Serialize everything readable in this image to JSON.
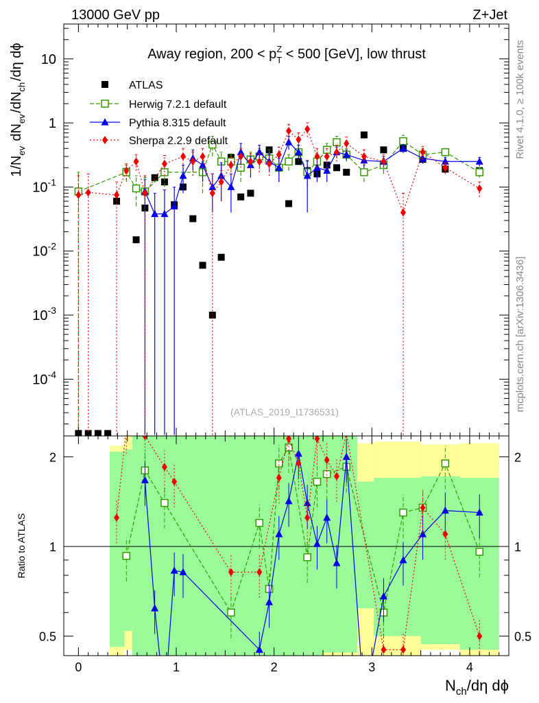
{
  "header": {
    "left": "13000 GeV pp",
    "right": "Z+Jet"
  },
  "side": {
    "rivet": "Rivet 4.1.0, ≥ 100k events",
    "mcplots": "mcplots.cern.ch [arXiv:1306.3436]"
  },
  "chart_data": {
    "type": "scatter",
    "title": "Away region, 200 < p_T^Z < 500 [GeV], low thrust",
    "watermark": "(ATLAS_2019_I1736531)",
    "xlabel": "N_ch/dη dϕ",
    "ylabel": "1/N_ev dN_ev/dN_ch/dη dϕ",
    "ratio_ylabel": "Ratio to ATLAS",
    "xlim": [
      -0.15,
      4.4
    ],
    "ylim": [
      1.3e-05,
      35
    ],
    "ratio_ylim": [
      0.43,
      2.35
    ],
    "xticks": [
      0,
      1,
      2,
      3,
      4
    ],
    "yticks": [
      {
        "value": 10,
        "label": "10"
      },
      {
        "value": 1,
        "label": "1"
      },
      {
        "value": 0.1,
        "label": "10^-1"
      },
      {
        "value": 0.01,
        "label": "10^-2"
      },
      {
        "value": 0.001,
        "label": "10^-3"
      },
      {
        "value": 0.0001,
        "label": "10^-4"
      }
    ],
    "ratio_yticks": [
      {
        "value": 0.5,
        "label": "0.5"
      },
      {
        "value": 1,
        "label": "1"
      },
      {
        "value": 2,
        "label": "2"
      }
    ],
    "series": [
      {
        "name": "ATLAS",
        "color": "#000000",
        "marker": "square",
        "points": [
          [
            0.0,
            1.42e-05
          ],
          [
            0.1,
            1.42e-05
          ],
          [
            0.2,
            1.42e-05
          ],
          [
            0.3,
            1.42e-05
          ],
          [
            0.39,
            0.06
          ],
          [
            0.49,
            0.175
          ],
          [
            0.59,
            0.015
          ],
          [
            0.68,
            0.047
          ],
          [
            0.78,
            0.14
          ],
          [
            0.88,
            0.12
          ],
          [
            0.98,
            0.053
          ],
          [
            1.07,
            0.1
          ],
          [
            1.17,
            0.032
          ],
          [
            1.27,
            0.006
          ],
          [
            1.37,
            0.001
          ],
          [
            1.46,
            0.008
          ],
          [
            1.56,
            0.29
          ],
          [
            1.66,
            0.07
          ],
          [
            1.76,
            0.08
          ],
          [
            1.85,
            0.3
          ],
          [
            1.95,
            0.38
          ],
          [
            2.05,
            0.2
          ],
          [
            2.15,
            0.055
          ],
          [
            2.25,
            0.25
          ],
          [
            2.34,
            0.18
          ],
          [
            2.44,
            0.16
          ],
          [
            2.54,
            0.22
          ],
          [
            2.64,
            0.2
          ],
          [
            2.74,
            0.17
          ],
          [
            2.92,
            0.65
          ],
          [
            3.12,
            0.38
          ],
          [
            3.32,
            0.4
          ],
          [
            3.52,
            0.27
          ],
          [
            3.75,
            0.19
          ],
          [
            4.1,
            0.18
          ]
        ]
      },
      {
        "name": "Herwig 7.2.1 default",
        "color": "#339900",
        "marker": "open-square",
        "dash": "6,3",
        "points": [
          [
            0.0,
            0.085,
            1.35e-05,
            0.17
          ],
          [
            0.49,
            0.17,
            0.12,
            0.22
          ],
          [
            0.59,
            0.095,
            0.05,
            0.15
          ],
          [
            0.68,
            0.085,
            0.04,
            0.14
          ],
          [
            0.88,
            0.17,
            0.1,
            0.25
          ],
          [
            1.27,
            0.17,
            0.08,
            0.25
          ],
          [
            1.37,
            0.46,
            0.3,
            0.62
          ],
          [
            1.46,
            0.25,
            0.15,
            0.35
          ],
          [
            1.56,
            0.25,
            0.18,
            0.33
          ],
          [
            1.66,
            0.2,
            0.12,
            0.3
          ],
          [
            1.76,
            0.27,
            0.2,
            0.35
          ],
          [
            1.85,
            0.3,
            0.2,
            0.4
          ],
          [
            1.95,
            0.28,
            0.2,
            0.38
          ],
          [
            2.05,
            0.2,
            0.12,
            0.28
          ],
          [
            2.15,
            0.25,
            0.18,
            0.32
          ],
          [
            2.25,
            0.35,
            0.25,
            0.45
          ],
          [
            2.34,
            0.17,
            0.1,
            0.25
          ],
          [
            2.44,
            0.25,
            0.15,
            0.35
          ],
          [
            2.54,
            0.38,
            0.28,
            0.48
          ],
          [
            2.64,
            0.5,
            0.38,
            0.62
          ],
          [
            2.74,
            0.32,
            0.25,
            0.4
          ],
          [
            2.92,
            0.17,
            0.12,
            0.22
          ],
          [
            3.12,
            0.22,
            0.16,
            0.28
          ],
          [
            3.32,
            0.52,
            0.4,
            0.64
          ],
          [
            3.52,
            0.32,
            0.25,
            0.4
          ],
          [
            3.75,
            0.35,
            0.3,
            0.4
          ],
          [
            4.1,
            0.17,
            0.14,
            0.2
          ]
        ]
      },
      {
        "name": "Pythia 8.315 default",
        "color": "#0000ee",
        "marker": "triangle",
        "dash": "",
        "points": [
          [
            0.68,
            0.085,
            1.35e-05,
            0.13
          ],
          [
            0.78,
            0.038,
            1.35e-05,
            0.08
          ],
          [
            0.88,
            0.038,
            1.35e-05,
            0.09
          ],
          [
            0.98,
            0.05,
            1.35e-05,
            0.1
          ],
          [
            1.07,
            0.15,
            0.08,
            0.22
          ],
          [
            1.17,
            0.28,
            0.18,
            0.38
          ],
          [
            1.27,
            0.22,
            0.12,
            0.32
          ],
          [
            1.37,
            0.1,
            0.04,
            0.16
          ],
          [
            1.46,
            0.15,
            0.06,
            0.24
          ],
          [
            1.56,
            0.1,
            0.04,
            0.16
          ],
          [
            1.66,
            0.35,
            0.22,
            0.48
          ],
          [
            1.76,
            0.22,
            0.14,
            0.3
          ],
          [
            1.85,
            0.35,
            0.25,
            0.45
          ],
          [
            1.95,
            0.25,
            0.17,
            0.33
          ],
          [
            2.05,
            0.2,
            0.12,
            0.28
          ],
          [
            2.15,
            0.5,
            0.38,
            0.62
          ],
          [
            2.25,
            0.35,
            0.25,
            0.45
          ],
          [
            2.34,
            0.15,
            0.04,
            0.26
          ],
          [
            2.44,
            0.2,
            0.12,
            0.28
          ],
          [
            2.54,
            0.18,
            0.12,
            0.24
          ],
          [
            2.64,
            0.35,
            0.28,
            0.42
          ],
          [
            2.74,
            0.32,
            0.26,
            0.38
          ],
          [
            2.92,
            0.26,
            0.2,
            0.32
          ],
          [
            3.12,
            0.25,
            0.2,
            0.3
          ],
          [
            3.32,
            0.4,
            0.34,
            0.46
          ],
          [
            3.52,
            0.28,
            0.23,
            0.33
          ],
          [
            3.75,
            0.25,
            0.21,
            0.29
          ],
          [
            4.1,
            0.25,
            0.21,
            0.29
          ]
        ]
      },
      {
        "name": "Sherpa 2.2.9 default",
        "color": "#ee0000",
        "marker": "diamond",
        "dash": "2,3",
        "points": [
          [
            0.0,
            0.075,
            1.35e-05,
            0.15
          ],
          [
            0.1,
            0.082,
            1.35e-05,
            0.16
          ],
          [
            0.39,
            0.075,
            1.35e-05,
            0.12
          ],
          [
            0.49,
            0.18,
            0.13,
            0.23
          ],
          [
            0.59,
            0.25,
            0.18,
            0.32
          ],
          [
            0.68,
            0.08,
            1.35e-05,
            0.15
          ],
          [
            0.88,
            0.23,
            0.15,
            0.31
          ],
          [
            1.07,
            0.3,
            0.2,
            0.4
          ],
          [
            1.17,
            0.25,
            0.15,
            0.35
          ],
          [
            1.27,
            0.3,
            0.2,
            0.4
          ],
          [
            1.37,
            0.08,
            1.35e-05,
            0.16
          ],
          [
            1.46,
            0.12,
            0.06,
            0.18
          ],
          [
            1.56,
            0.22,
            0.15,
            0.29
          ],
          [
            1.66,
            0.3,
            0.2,
            0.4
          ],
          [
            1.76,
            0.25,
            0.17,
            0.33
          ],
          [
            1.85,
            0.25,
            0.17,
            0.33
          ],
          [
            1.95,
            0.23,
            0.15,
            0.31
          ],
          [
            2.05,
            0.32,
            0.22,
            0.42
          ],
          [
            2.15,
            0.75,
            0.55,
            0.95
          ],
          [
            2.25,
            0.55,
            0.4,
            0.7
          ],
          [
            2.34,
            0.8,
            0.6,
            1.0
          ],
          [
            2.44,
            0.3,
            0.2,
            0.4
          ],
          [
            2.54,
            0.3,
            0.2,
            0.4
          ],
          [
            2.64,
            0.35,
            0.25,
            0.45
          ],
          [
            2.74,
            0.48,
            0.36,
            0.6
          ],
          [
            2.92,
            0.3,
            0.22,
            0.38
          ],
          [
            3.12,
            0.25,
            0.18,
            0.32
          ],
          [
            3.32,
            0.04,
            1.35e-05,
            0.08
          ],
          [
            3.52,
            0.35,
            0.27,
            0.43
          ],
          [
            3.75,
            0.2,
            0.16,
            0.24
          ],
          [
            4.1,
            0.095,
            0.07,
            0.12
          ]
        ]
      }
    ],
    "ratio": {
      "bands_yellow": [
        [
          0.32,
          0.47,
          2.18
        ],
        [
          0.47,
          0.55,
          0.45,
          2.35
        ],
        [
          0.55,
          1.3,
          0.43,
          2.35
        ],
        [
          1.3,
          2.2,
          0.43,
          2.35
        ],
        [
          2.2,
          2.85,
          0.43,
          2.35
        ],
        [
          2.85,
          3.02,
          0.43,
          2.22
        ],
        [
          3.02,
          3.5,
          0.43,
          2.25
        ],
        [
          3.5,
          3.9,
          0.45,
          2.2
        ],
        [
          3.9,
          4.3,
          0.43,
          2.22
        ]
      ],
      "bands_green": [
        [
          0.32,
          0.47,
          0.46,
          2.08
        ],
        [
          0.47,
          0.55,
          0.52,
          2.12
        ],
        [
          0.55,
          1.3,
          0.43,
          2.35
        ],
        [
          1.3,
          1.6,
          0.43,
          2.35
        ],
        [
          1.6,
          2.2,
          0.43,
          2.35
        ],
        [
          2.2,
          2.5,
          0.43,
          2.35
        ],
        [
          2.5,
          2.85,
          0.44,
          2.35
        ],
        [
          2.85,
          3.02,
          0.62,
          1.65
        ],
        [
          3.02,
          3.5,
          0.5,
          1.7
        ],
        [
          3.5,
          3.9,
          0.47,
          1.72
        ],
        [
          3.9,
          4.3,
          0.45,
          1.7
        ]
      ],
      "herwig": [
        [
          0.49,
          0.93
        ],
        [
          0.68,
          1.8
        ],
        [
          0.88,
          1.4
        ],
        [
          1.56,
          0.6
        ],
        [
          1.85,
          1.2
        ],
        [
          1.95,
          0.72
        ],
        [
          2.05,
          1.9
        ],
        [
          2.15,
          2.15
        ],
        [
          2.34,
          0.92
        ],
        [
          2.44,
          1.65
        ],
        [
          2.54,
          1.75
        ],
        [
          2.74,
          1.85
        ],
        [
          3.12,
          0.6
        ],
        [
          3.32,
          1.3
        ],
        [
          3.52,
          1.35
        ],
        [
          3.75,
          1.9
        ],
        [
          4.1,
          0.96
        ]
      ],
      "pythia": [
        [
          0.68,
          1.67
        ],
        [
          0.78,
          0.62
        ],
        [
          0.88,
          0.3
        ],
        [
          0.98,
          0.83
        ],
        [
          1.07,
          0.82
        ],
        [
          1.85,
          0.45
        ],
        [
          1.95,
          0.65
        ],
        [
          2.05,
          1.1
        ],
        [
          2.15,
          1.42
        ],
        [
          2.25,
          2.05
        ],
        [
          2.34,
          1.4
        ],
        [
          2.44,
          1.02
        ],
        [
          2.54,
          1.25
        ],
        [
          2.64,
          0.88
        ],
        [
          2.74,
          2.0
        ],
        [
          2.92,
          0.3
        ],
        [
          3.12,
          0.68
        ],
        [
          3.32,
          0.9
        ],
        [
          3.52,
          1.1
        ],
        [
          3.75,
          1.32
        ],
        [
          4.1,
          1.3
        ]
      ],
      "sherpa": [
        [
          0.39,
          1.25
        ],
        [
          0.49,
          2.5
        ],
        [
          0.68,
          2.35
        ],
        [
          0.88,
          1.85
        ],
        [
          0.98,
          1.65
        ],
        [
          1.56,
          0.82
        ],
        [
          1.85,
          0.82
        ],
        [
          2.05,
          1.7
        ],
        [
          2.15,
          2.3
        ],
        [
          2.25,
          1.9
        ],
        [
          2.34,
          1.25
        ],
        [
          2.44,
          2.3
        ],
        [
          2.54,
          1.95
        ],
        [
          2.64,
          1.72
        ],
        [
          2.74,
          2.4
        ],
        [
          3.12,
          0.45
        ],
        [
          3.32,
          0.45
        ],
        [
          3.52,
          1.35
        ],
        [
          3.75,
          1.1
        ],
        [
          4.1,
          0.5
        ]
      ]
    }
  }
}
